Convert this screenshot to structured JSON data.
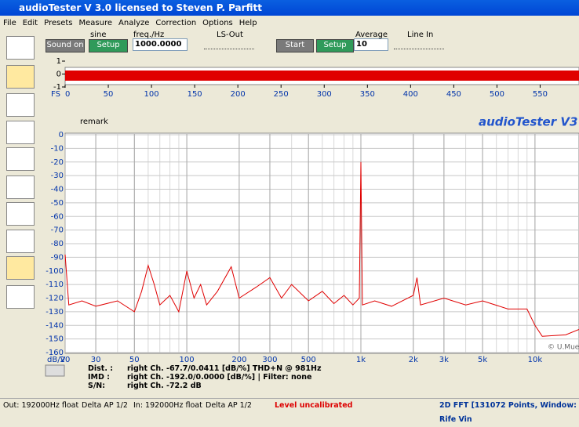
{
  "title_bar": {
    "title": "audioTester  V 3.0   licensed to Steven P. Parfitt"
  },
  "menu": [
    "File",
    "Edit",
    "Presets",
    "Measure",
    "Analyze",
    "Correction",
    "Options",
    "Help"
  ],
  "toolbar": {
    "sound_on": "Sound on",
    "setup": "Setup",
    "sine": "sine",
    "freq_label": "freq./Hz",
    "freq_value": "1000.0000",
    "ls_out": "LS-Out",
    "start": "Start",
    "setup2": "Setup",
    "average_label": "Average",
    "average_value": "10",
    "line_in": "Line In"
  },
  "scope": {
    "fs_label": "FS",
    "ylim": [
      -1,
      1
    ],
    "yticks": [
      1,
      0,
      -1
    ],
    "xlim": [
      0,
      595
    ],
    "xticks": [
      0,
      50,
      100,
      150,
      200,
      250,
      300,
      350,
      400,
      450,
      500,
      550
    ]
  },
  "remark": "remark",
  "brand": "audioTester V3",
  "spectrum": {
    "unit": "dB/V",
    "watermark": "© U.Mue",
    "ylim": [
      -160,
      0
    ],
    "yticks": [
      0,
      -10,
      -20,
      -30,
      -40,
      -50,
      -60,
      -70,
      -80,
      -90,
      -100,
      -110,
      -120,
      -130,
      -140,
      -150,
      -160
    ],
    "xlim": [
      20,
      17900
    ],
    "xticks": [
      20,
      30,
      50,
      100,
      200,
      300,
      500,
      {
        "value": 1000,
        "label": "1k"
      },
      {
        "value": 2000,
        "label": "2k"
      },
      {
        "value": 3000,
        "label": "3k"
      },
      {
        "value": 5000,
        "label": "5k"
      },
      {
        "value": 10000,
        "label": "10k"
      }
    ],
    "x": [
      20,
      21,
      25,
      30,
      40,
      50,
      55,
      60,
      65,
      70,
      80,
      90,
      100,
      110,
      120,
      130,
      150,
      180,
      200,
      250,
      300,
      350,
      400,
      500,
      600,
      700,
      800,
      900,
      980,
      1000,
      1020,
      1200,
      1500,
      2000,
      2100,
      2200,
      3000,
      4000,
      5000,
      7000,
      9000,
      10000,
      11000,
      15000,
      17900
    ],
    "y": [
      -88,
      -125,
      -122,
      -126,
      -122,
      -130,
      -115,
      -96,
      -110,
      -125,
      -118,
      -130,
      -100,
      -120,
      -110,
      -125,
      -115,
      -97,
      -120,
      -112,
      -105,
      -120,
      -110,
      -122,
      -115,
      -124,
      -118,
      -125,
      -120,
      -20,
      -125,
      -122,
      -126,
      -118,
      -105,
      -125,
      -120,
      -125,
      -122,
      -128,
      -128,
      -140,
      -148,
      -147,
      -143
    ]
  },
  "results": [
    [
      "Dist. :",
      "right Ch.  -67.7/0.0411 [dB/%] THD+N @ 981Hz"
    ],
    [
      "IMD :",
      "right Ch.  -192.0/0.0000 [dB/%] |  Filter: none"
    ],
    [
      "S/N:",
      "right Ch.  -72.2 dB"
    ]
  ],
  "status": [
    "Out: 192000Hz float",
    "Delta AP 1/2",
    "In: 192000Hz float",
    "Delta AP 1/2",
    "Level uncalibrated",
    "2D FFT [131072 Points, Window: Rife Vin"
  ]
}
